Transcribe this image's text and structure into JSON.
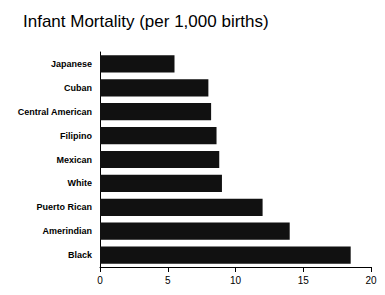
{
  "chart_data": {
    "type": "bar",
    "title": "Infant Mortality (per 1,000 births)",
    "orientation": "horizontal",
    "categories": [
      "Japanese",
      "Cuban",
      "Central American",
      "Filipino",
      "Mexican",
      "White",
      "Puerto Rican",
      "Amerindian",
      "Black"
    ],
    "values": [
      5.5,
      8.0,
      8.2,
      8.6,
      8.8,
      9.0,
      12.0,
      14.0,
      18.5
    ],
    "color": "#111111",
    "xlim": [
      0,
      20
    ],
    "xticks": [
      0,
      5,
      10,
      15,
      20
    ],
    "grid": false
  }
}
